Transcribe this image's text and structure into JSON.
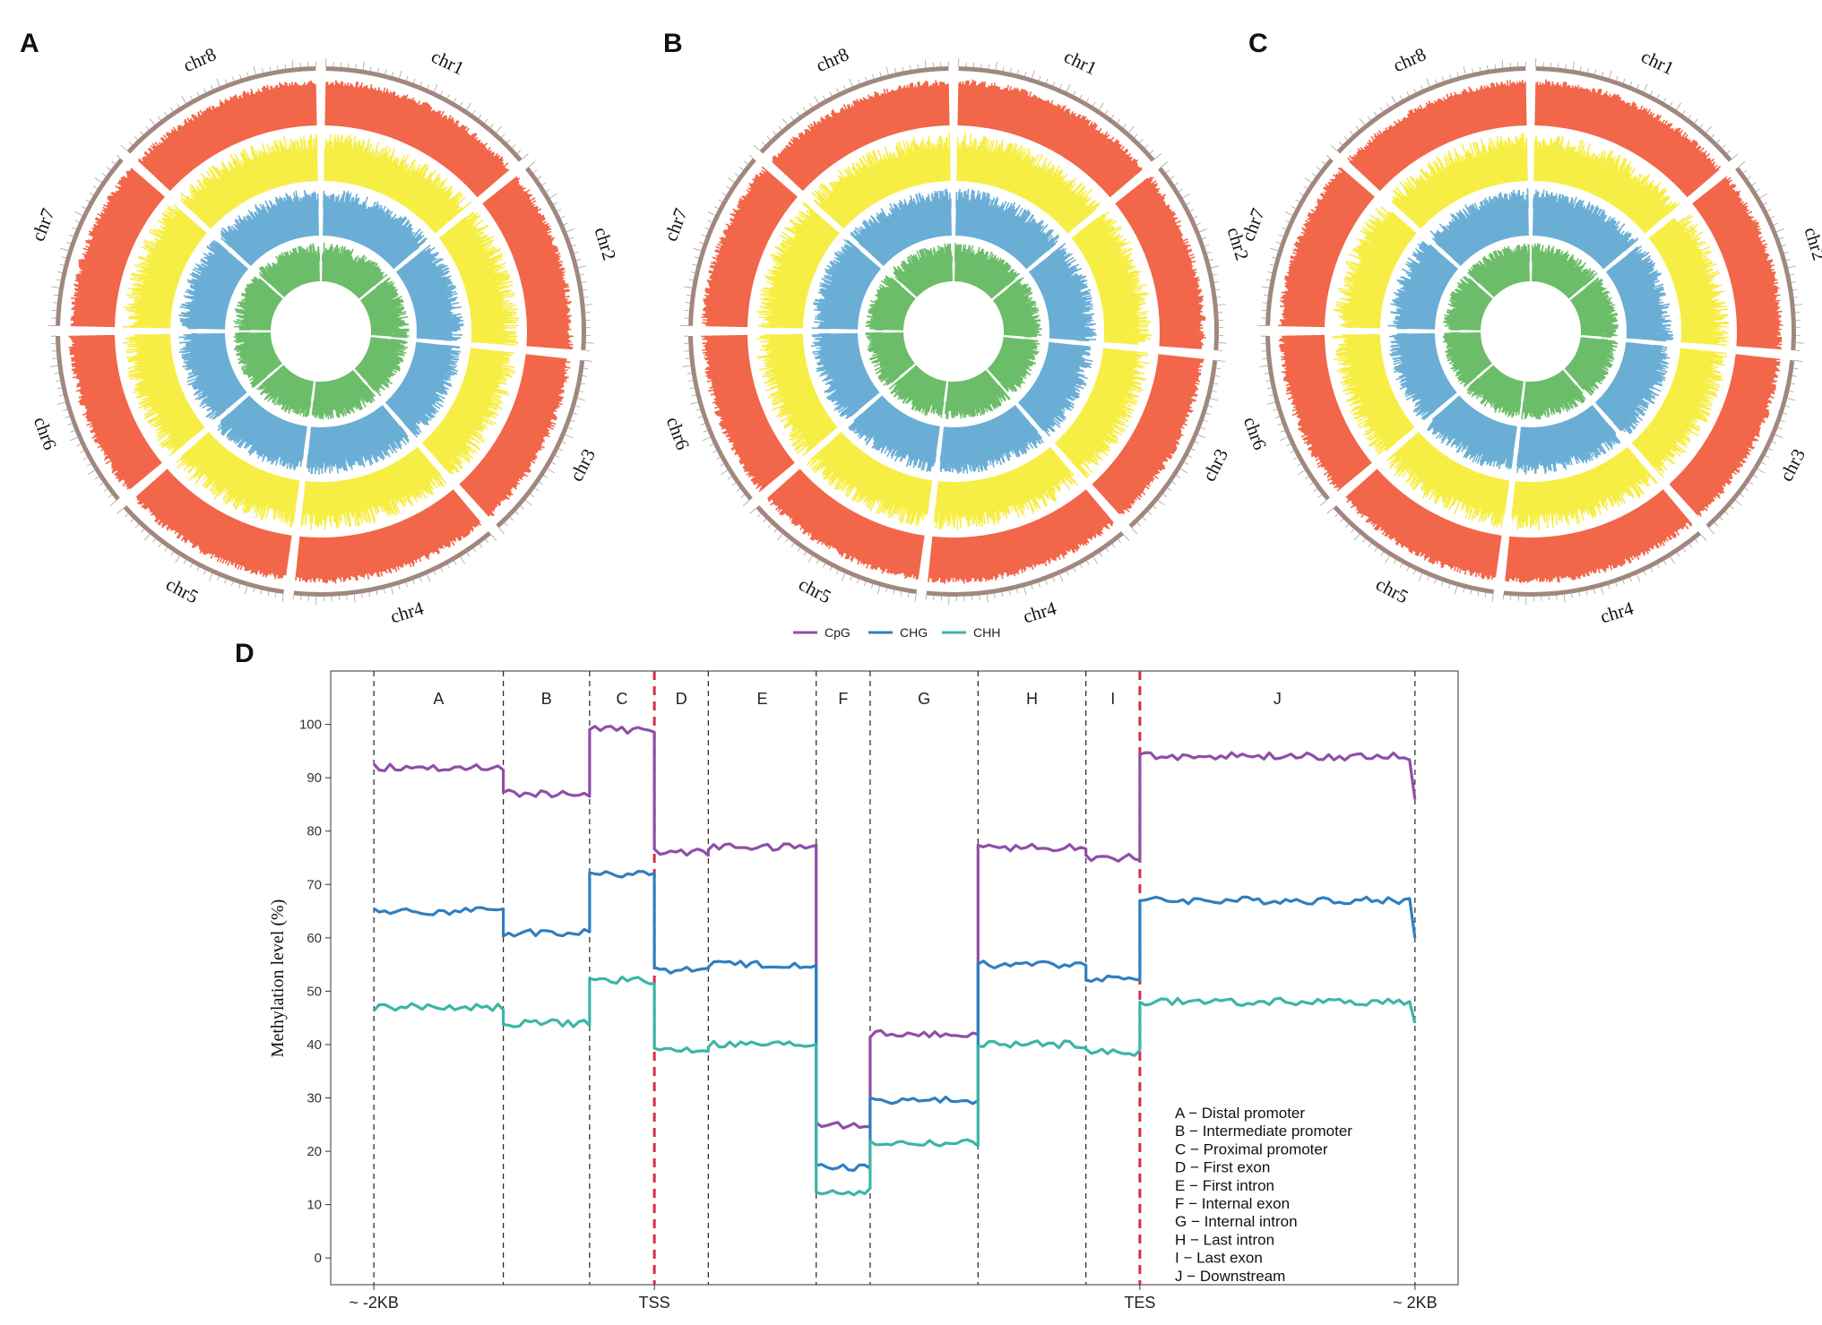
{
  "panels": {
    "A": "A",
    "B": "B",
    "C": "C",
    "D": "D"
  },
  "circos": {
    "chromosomes": [
      "chr1",
      "chr2",
      "chr3",
      "chr4",
      "chr5",
      "chr6",
      "chr7",
      "chr8"
    ],
    "chromosome_sizes": [
      1.0,
      0.88,
      0.86,
      0.95,
      0.83,
      0.8,
      0.82,
      0.95
    ],
    "track_colors": {
      "ideogram": "#a0887e",
      "CpG": "#f2664a",
      "CHG": "#f7ee45",
      "CHH": "#6aaed6",
      "other": "#6cbd6a"
    },
    "panels": [
      "A",
      "B",
      "C"
    ]
  },
  "chart_data": {
    "type": "line",
    "title": "",
    "xlabel": "",
    "ylabel": "Methylation level (%)",
    "ylim": [
      -5,
      110
    ],
    "yticks": [
      0,
      10,
      20,
      30,
      40,
      50,
      60,
      70,
      80,
      90,
      100
    ],
    "x_landmarks": [
      "~ -2KB",
      "TSS",
      "TES",
      "~ 2KB"
    ],
    "legend": [
      "CpG",
      "CHG",
      "CHH"
    ],
    "colors": {
      "CpG": "#8e4fa6",
      "CHG": "#2f7fc0",
      "CHH": "#3cb5a6",
      "tss_tes": "#d62d4a"
    },
    "regions": [
      {
        "id": "A",
        "span": [
          0,
          1.2
        ],
        "CpG": 92,
        "CHG": 65,
        "CHH": 47
      },
      {
        "id": "B",
        "span": [
          1.2,
          2.0
        ],
        "CpG": 87,
        "CHG": 61,
        "CHH": 44
      },
      {
        "id": "C",
        "span": [
          2.0,
          2.6
        ],
        "CpG": 99,
        "CHG": 72,
        "CHH": 52
      },
      {
        "id": "D",
        "span": [
          2.6,
          3.1
        ],
        "CpG": 76,
        "CHG": 54,
        "CHH": 39
      },
      {
        "id": "E",
        "span": [
          3.1,
          4.1
        ],
        "CpG": 77,
        "CHG": 55,
        "CHH": 40
      },
      {
        "id": "F",
        "span": [
          4.1,
          4.6
        ],
        "CpG": 25,
        "CHG": 17,
        "CHH": 12.5
      },
      {
        "id": "G",
        "span": [
          4.6,
          5.6
        ],
        "CpG": 42,
        "CHG": 29.5,
        "CHH": 21.5
      },
      {
        "id": "H",
        "span": [
          5.6,
          6.6
        ],
        "CpG": 77,
        "CHG": 55,
        "CHH": 40
      },
      {
        "id": "I",
        "span": [
          6.6,
          7.1
        ],
        "CpG": 75,
        "CHG": 52.5,
        "CHH": 38.5
      },
      {
        "id": "J",
        "span": [
          7.1,
          9.65
        ],
        "CpG": 94,
        "CHG": 67,
        "CHH": 48
      }
    ],
    "x_range": [
      -0.4,
      10.05
    ],
    "tss_x": 2.6,
    "tes_x": 7.1,
    "key": [
      "A − Distal promoter",
      "B − Intermediate promoter",
      "C − Proximal promoter",
      "D − First exon",
      "E − First intron",
      "F − Internal exon",
      "G − Internal intron",
      "H − Last intron",
      " I − Last exon",
      "J − Downstream"
    ]
  }
}
